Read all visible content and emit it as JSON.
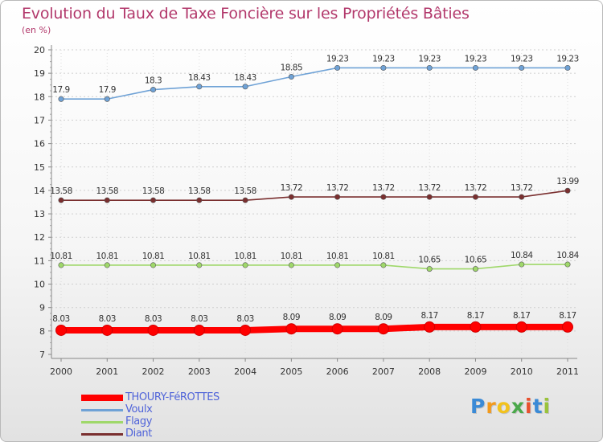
{
  "title": "Evolution du Taux de Taxe Foncière sur les Propriétés Bâties",
  "subtitle": "(en %)",
  "chart_data": {
    "type": "line",
    "title": "Evolution du Taux de Taxe Foncière sur les Propriétés Bâties",
    "ylabel": "(en %)",
    "xlabel": "",
    "ylim": [
      7,
      20
    ],
    "yticks": [
      "7",
      "8",
      "9",
      "10",
      "11",
      "12",
      "13",
      "14",
      "15",
      "16",
      "17",
      "18",
      "19",
      "20"
    ],
    "categories": [
      "2000",
      "2001",
      "2002",
      "2003",
      "2004",
      "2005",
      "2006",
      "2007",
      "2008",
      "2009",
      "2010",
      "2011"
    ],
    "series": [
      {
        "name": "THOURY-FéROTTES",
        "color": "#ff0000",
        "values": [
          8.03,
          8.03,
          8.03,
          8.03,
          8.03,
          8.09,
          8.09,
          8.09,
          8.17,
          8.17,
          8.17,
          8.17
        ],
        "labels": [
          "8.03",
          "8.03",
          "8.03",
          "8.03",
          "8.03",
          "8.09",
          "8.09",
          "8.09",
          "8.17",
          "8.17",
          "8.17",
          "8.17"
        ]
      },
      {
        "name": "Voulx",
        "color": "#6fa2d6",
        "values": [
          17.9,
          17.9,
          18.3,
          18.43,
          18.43,
          18.85,
          19.23,
          19.23,
          19.23,
          19.23,
          19.23,
          19.23
        ],
        "labels": [
          "17.9",
          "17.9",
          "18.3",
          "18.43",
          "18.43",
          "18.85",
          "19.23",
          "19.23",
          "19.23",
          "19.23",
          "19.23",
          "19.23"
        ]
      },
      {
        "name": "Flagy",
        "color": "#9fd86a",
        "values": [
          10.81,
          10.81,
          10.81,
          10.81,
          10.81,
          10.81,
          10.81,
          10.81,
          10.65,
          10.65,
          10.84,
          10.84
        ],
        "labels": [
          "10.81",
          "10.81",
          "10.81",
          "10.81",
          "10.81",
          "10.81",
          "10.81",
          "10.81",
          "10.65",
          "10.65",
          "10.84",
          "10.84"
        ]
      },
      {
        "name": "Diant",
        "color": "#7a2f2f",
        "values": [
          13.58,
          13.58,
          13.58,
          13.58,
          13.58,
          13.72,
          13.72,
          13.72,
          13.72,
          13.72,
          13.72,
          13.99
        ],
        "labels": [
          "13.58",
          "13.58",
          "13.58",
          "13.58",
          "13.58",
          "13.72",
          "13.72",
          "13.72",
          "13.72",
          "13.72",
          "13.72",
          "13.99"
        ]
      }
    ]
  },
  "logo": {
    "letters": [
      "P",
      "r",
      "o",
      "x",
      "i",
      "t",
      "i"
    ],
    "colors": [
      "#3a8ad6",
      "#f29a1d",
      "#f2c21d",
      "#4aa84a",
      "#e8502e",
      "#3a8ad6",
      "#9ac33a"
    ]
  }
}
